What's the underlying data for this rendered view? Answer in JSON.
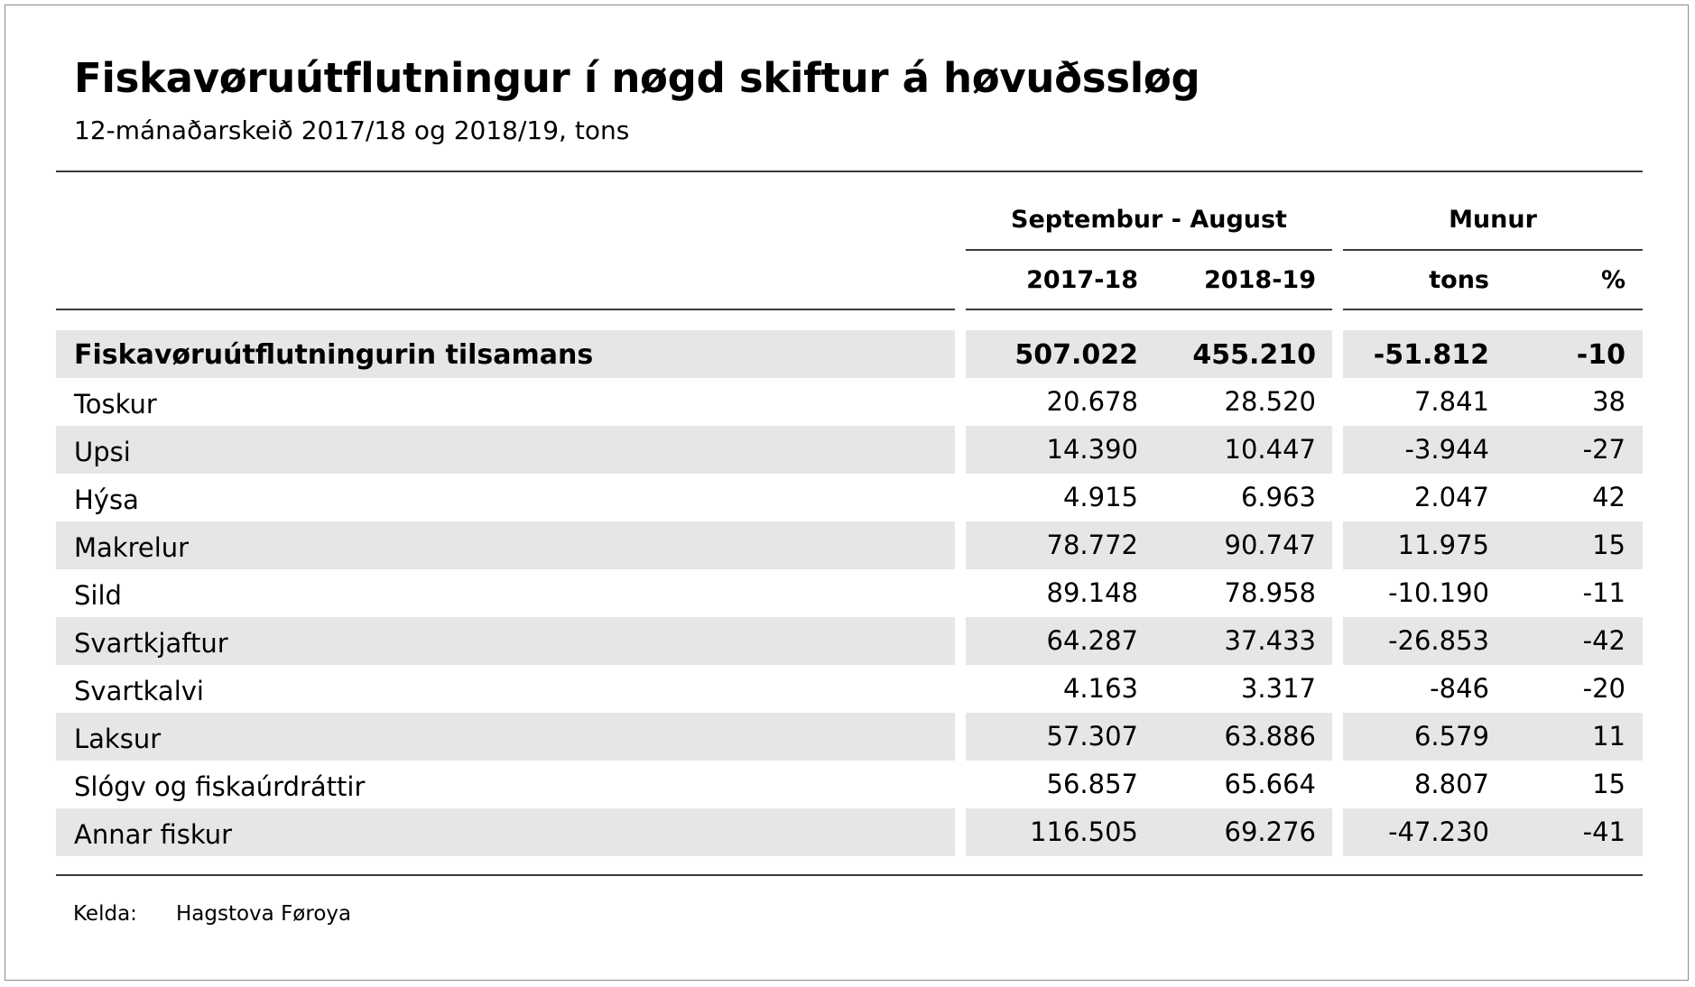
{
  "title": "Fiskavøruútflutningur í nøgd skiftur á høvuðssløg",
  "subtitle": "12-mánaðarskeið 2017/18 og 2018/19, tons",
  "headers": {
    "period_group": "Septembur - August",
    "diff_group": "Munur",
    "col_2017_18": "2017-18",
    "col_2018_19": "2018-19",
    "col_tons": "tons",
    "col_pct": "%"
  },
  "rows": [
    {
      "label": "Fiskavøruútflutningurin tilsamans",
      "v1718": "507.022",
      "v1819": "455.210",
      "diff": "-51.812",
      "pct": "-10",
      "total": true,
      "shaded": true
    },
    {
      "label": "Toskur",
      "v1718": "20.678",
      "v1819": "28.520",
      "diff": "7.841",
      "pct": "38",
      "total": false,
      "shaded": false
    },
    {
      "label": "Upsi",
      "v1718": "14.390",
      "v1819": "10.447",
      "diff": "-3.944",
      "pct": "-27",
      "total": false,
      "shaded": true
    },
    {
      "label": "Hýsa",
      "v1718": "4.915",
      "v1819": "6.963",
      "diff": "2.047",
      "pct": "42",
      "total": false,
      "shaded": false
    },
    {
      "label": "Makrelur",
      "v1718": "78.772",
      "v1819": "90.747",
      "diff": "11.975",
      "pct": "15",
      "total": false,
      "shaded": true
    },
    {
      "label": "Sild",
      "v1718": "89.148",
      "v1819": "78.958",
      "diff": "-10.190",
      "pct": "-11",
      "total": false,
      "shaded": false
    },
    {
      "label": "Svartkjaftur",
      "v1718": "64.287",
      "v1819": "37.433",
      "diff": "-26.853",
      "pct": "-42",
      "total": false,
      "shaded": true
    },
    {
      "label": "Svartkalvi",
      "v1718": "4.163",
      "v1819": "3.317",
      "diff": "-846",
      "pct": "-20",
      "total": false,
      "shaded": false
    },
    {
      "label": "Laksur",
      "v1718": "57.307",
      "v1819": "63.886",
      "diff": "6.579",
      "pct": "11",
      "total": false,
      "shaded": true
    },
    {
      "label": "Slógv og fiskaúrdráttir",
      "v1718": "56.857",
      "v1819": "65.664",
      "diff": "8.807",
      "pct": "15",
      "total": false,
      "shaded": false
    },
    {
      "label": "Annar fiskur",
      "v1718": "116.505",
      "v1819": "69.276",
      "diff": "-47.230",
      "pct": "-41",
      "total": false,
      "shaded": true
    }
  ],
  "source": {
    "label": "Kelda:",
    "value": "Hagstova Føroya"
  }
}
